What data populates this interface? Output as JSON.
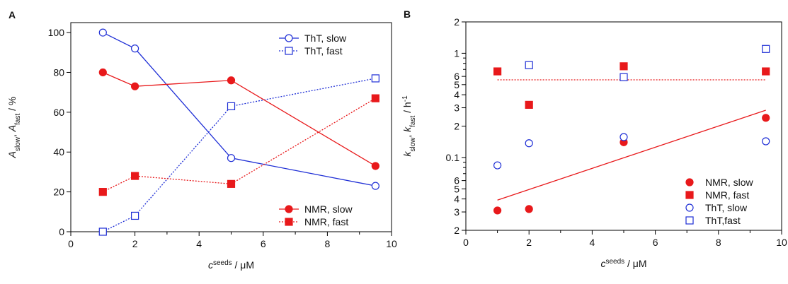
{
  "chart_data": [
    {
      "type": "line",
      "panel_label": "A",
      "xlabel": [
        {
          "text": "c",
          "style": "italic"
        },
        {
          "text": "seeds",
          "style": "sup"
        },
        {
          "text": " / μM"
        }
      ],
      "ylabel": [
        {
          "text": "A",
          "style": "italic"
        },
        {
          "text": "slow",
          "style": "sub"
        },
        {
          "text": ",  "
        },
        {
          "text": "A",
          "style": "italic"
        },
        {
          "text": "fast",
          "style": "sub"
        },
        {
          "text": " / %"
        }
      ],
      "x": [
        1,
        2,
        5,
        9.5
      ],
      "xlim": [
        0,
        10
      ],
      "xticks": [
        0,
        2,
        4,
        6,
        8,
        10
      ],
      "minor_xticks": [
        1,
        3,
        5,
        7,
        9
      ],
      "ylim": [
        0,
        105
      ],
      "yticks": [
        0,
        20,
        40,
        60,
        80,
        100
      ],
      "log_y": false,
      "series": [
        {
          "name": "ThT, slow",
          "color": "#1f2fd6",
          "marker": "circle",
          "filled": false,
          "line_style": "solid",
          "legend": "top-right",
          "values": [
            100,
            92,
            37,
            23
          ]
        },
        {
          "name": "ThT, fast",
          "color": "#1f2fd6",
          "marker": "square",
          "filled": false,
          "line_style": "dotted",
          "legend": "top-right",
          "values": [
            0,
            8,
            63,
            77
          ]
        },
        {
          "name": "NMR, slow",
          "color": "#e8191b",
          "marker": "circle",
          "filled": true,
          "line_style": "solid",
          "legend": "bottom-right",
          "values": [
            80,
            73,
            76,
            33
          ]
        },
        {
          "name": "NMR, fast",
          "color": "#e8191b",
          "marker": "square",
          "filled": true,
          "line_style": "dotted",
          "legend": "bottom-right",
          "values": [
            20,
            28,
            24,
            67
          ]
        }
      ]
    },
    {
      "type": "scatter",
      "panel_label": "B",
      "xlabel": [
        {
          "text": "c",
          "style": "italic"
        },
        {
          "text": "seeds",
          "style": "sup"
        },
        {
          "text": " / μM"
        }
      ],
      "ylabel": [
        {
          "text": "k",
          "style": "italic"
        },
        {
          "text": "slow",
          "style": "sub"
        },
        {
          "text": ",  "
        },
        {
          "text": "k",
          "style": "italic"
        },
        {
          "text": "fast",
          "style": "sub"
        },
        {
          "text": " / h"
        },
        {
          "text": "-1",
          "style": "sup"
        }
      ],
      "x": [
        1,
        2,
        5,
        9.5
      ],
      "xlim": [
        0,
        10
      ],
      "xticks": [
        0,
        2,
        4,
        6,
        8,
        10
      ],
      "minor_xticks": [
        1,
        3,
        5,
        7,
        9
      ],
      "ylim": [
        0.02,
        2
      ],
      "log_y": true,
      "yticks": [
        {
          "value": 0.02,
          "label": "2"
        },
        {
          "value": 0.03,
          "label": "3"
        },
        {
          "value": 0.04,
          "label": "4"
        },
        {
          "value": 0.05,
          "label": "5"
        },
        {
          "value": 0.06,
          "label": "6"
        },
        0.1,
        {
          "value": 0.2,
          "label": "2"
        },
        {
          "value": 0.3,
          "label": "3"
        },
        {
          "value": 0.4,
          "label": "4"
        },
        {
          "value": 0.5,
          "label": "5"
        },
        {
          "value": 0.6,
          "label": "6"
        },
        1,
        2
      ],
      "minor_yticks": [
        0.07,
        0.08,
        0.09,
        0.7,
        0.8,
        0.9
      ],
      "series": [
        {
          "name": "NMR, slow",
          "color": "#e8191b",
          "marker": "circle",
          "filled": true,
          "legend": "bottom-right",
          "values": [
            0.031,
            0.032,
            0.14,
            0.24
          ]
        },
        {
          "name": "NMR, fast",
          "color": "#e8191b",
          "marker": "square",
          "filled": true,
          "legend": "bottom-right",
          "values": [
            0.67,
            0.32,
            0.75,
            0.67
          ]
        },
        {
          "name": "ThT, slow",
          "color": "#1f2fd6",
          "marker": "circle",
          "filled": false,
          "legend": "bottom-right",
          "values": [
            0.084,
            0.137,
            0.157,
            0.143
          ]
        },
        {
          "name": "ThT,fast",
          "color": "#1f2fd6",
          "marker": "square",
          "filled": false,
          "legend": "bottom-right",
          "values": [
            null,
            0.77,
            0.59,
            1.1
          ]
        }
      ],
      "fits": [
        {
          "color": "#e8191b",
          "line_style": "solid",
          "x": [
            1,
            9.5
          ],
          "values": [
            0.039,
            0.284
          ]
        },
        {
          "color": "#e8191b",
          "line_style": "dotted",
          "x": [
            1,
            9.5
          ],
          "values": [
            0.556,
            0.556
          ]
        }
      ]
    }
  ]
}
